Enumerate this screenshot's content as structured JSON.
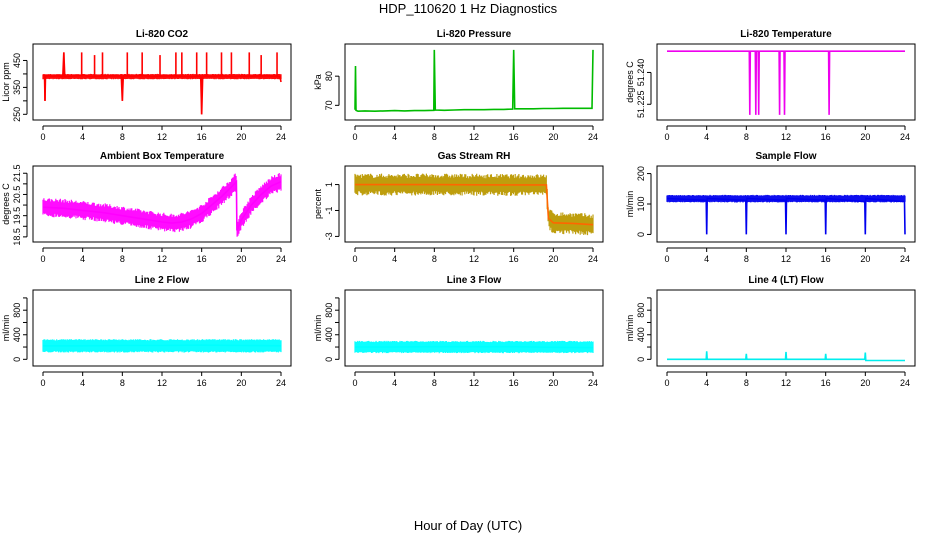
{
  "figure": {
    "title": "HDP_110620  1 Hz Diagnostics",
    "xlabel": "Hour of Day (UTC)"
  },
  "chart_data": [
    {
      "type": "line",
      "title": "Li-820 CO2",
      "ylabel": "Licor ppm",
      "color": "#ff0000",
      "xlim": [
        0,
        24
      ],
      "ylim": [
        240,
        500
      ],
      "xticks": [
        0,
        4,
        8,
        12,
        16,
        20,
        24
      ],
      "yticks": [
        250,
        300,
        350,
        400,
        450
      ],
      "ytick_labels": [
        "250",
        "",
        "350",
        "",
        "450"
      ],
      "series": [
        {
          "name": "CO2",
          "x": [
            0,
            0.15,
            0.2,
            0.25,
            0.5,
            1.0,
            1.5,
            2.0,
            2.1,
            2.2,
            3,
            4,
            5,
            6,
            7,
            7.9,
            8,
            8.1,
            9,
            10,
            11,
            12,
            13,
            14,
            15,
            15.9,
            16,
            16.1,
            17,
            18,
            19,
            20,
            21,
            22,
            23,
            23.9,
            24
          ],
          "y": [
            395,
            395,
            300,
            392,
            393,
            391,
            393,
            390,
            480,
            390,
            392,
            394,
            390,
            392,
            393,
            392,
            300,
            393,
            391,
            394,
            390,
            392,
            393,
            391,
            390,
            392,
            250,
            392,
            391,
            393,
            390,
            392,
            391,
            393,
            392,
            390,
            370
          ]
        }
      ],
      "band": {
        "low": 380,
        "high": 400
      },
      "spikes": [
        {
          "x": 0.2,
          "y": 300
        },
        {
          "x": 2.1,
          "y": 480
        },
        {
          "x": 3.9,
          "y": 480
        },
        {
          "x": 5.2,
          "y": 470
        },
        {
          "x": 6.0,
          "y": 480
        },
        {
          "x": 8.0,
          "y": 300
        },
        {
          "x": 8.5,
          "y": 480
        },
        {
          "x": 10.0,
          "y": 480
        },
        {
          "x": 11.8,
          "y": 470
        },
        {
          "x": 13.4,
          "y": 480
        },
        {
          "x": 14.0,
          "y": 480
        },
        {
          "x": 15.5,
          "y": 480
        },
        {
          "x": 16.0,
          "y": 250
        },
        {
          "x": 16.5,
          "y": 480
        },
        {
          "x": 18.0,
          "y": 480
        },
        {
          "x": 19.0,
          "y": 480
        },
        {
          "x": 20.8,
          "y": 480
        },
        {
          "x": 22.0,
          "y": 470
        },
        {
          "x": 23.6,
          "y": 480
        }
      ]
    },
    {
      "type": "line",
      "title": "Li-820 Pressure",
      "ylabel": "kPa",
      "color": "#00bb00",
      "xlim": [
        0,
        24
      ],
      "ylim": [
        66,
        90
      ],
      "xticks": [
        0,
        4,
        8,
        12,
        16,
        20,
        24
      ],
      "yticks": [
        70,
        80
      ],
      "ytick_labels": [
        "70",
        "80"
      ],
      "series": [
        {
          "name": "Pressure",
          "x": [
            0,
            0.05,
            0.1,
            0.3,
            1,
            2,
            3,
            4,
            5,
            6,
            7,
            7.95,
            8,
            8.1,
            9,
            10,
            11,
            12,
            13,
            14,
            15,
            15.9,
            16,
            16.1,
            17,
            18,
            19,
            20,
            21,
            22,
            23,
            23.9,
            24
          ],
          "y": [
            68.5,
            83.5,
            68.3,
            68.0,
            68.1,
            68.0,
            68.1,
            68.2,
            68.1,
            68.2,
            68.2,
            68.3,
            89,
            68.4,
            68.3,
            68.4,
            68.5,
            68.5,
            68.5,
            68.6,
            68.6,
            68.7,
            89,
            68.8,
            68.8,
            68.8,
            68.9,
            68.9,
            69.0,
            69.0,
            69.0,
            69.0,
            89
          ]
        }
      ]
    },
    {
      "type": "line",
      "title": "Li-820 Temperature",
      "ylabel": "degrees C",
      "color": "#ee00ee",
      "xlim": [
        0,
        24
      ],
      "ylim": [
        51.219,
        51.252
      ],
      "xticks": [
        0,
        4,
        8,
        12,
        16,
        20,
        24
      ],
      "yticks": [
        51.225,
        51.24
      ],
      "ytick_labels": [
        "51.225",
        "51.240"
      ],
      "series": [
        {
          "name": "Temperature",
          "x": [
            0,
            8.3,
            8.35,
            8.4,
            8.9,
            8.95,
            9.0,
            9.2,
            9.25,
            9.3,
            11.3,
            11.35,
            11.4,
            11.8,
            11.85,
            11.9,
            16.3,
            16.35,
            16.4,
            24
          ],
          "y": [
            51.25,
            51.25,
            51.22,
            51.25,
            51.25,
            51.22,
            51.25,
            51.25,
            51.22,
            51.25,
            51.25,
            51.22,
            51.25,
            51.25,
            51.22,
            51.25,
            51.25,
            51.22,
            51.25,
            51.25
          ]
        }
      ]
    },
    {
      "type": "line",
      "title": "Ambient Box Temperature",
      "ylabel": "degrees C",
      "color": "#ff00ff",
      "xlim": [
        0,
        24
      ],
      "ylim": [
        18.4,
        21.7
      ],
      "xticks": [
        0,
        4,
        8,
        12,
        16,
        20,
        24
      ],
      "yticks": [
        18.5,
        19,
        19.5,
        20,
        20.5,
        21,
        21.5
      ],
      "ytick_labels": [
        "18.5",
        "",
        "19.5",
        "",
        "20.5",
        "",
        "21.5"
      ],
      "series": [
        {
          "name": "Ambient",
          "x": [
            0,
            2,
            4,
            6,
            8,
            10,
            12,
            13,
            14,
            15,
            16,
            17,
            18,
            19,
            19.5,
            19.55,
            20,
            21,
            22,
            23,
            24
          ],
          "y": [
            19.9,
            19.85,
            19.75,
            19.65,
            19.5,
            19.35,
            19.2,
            19.15,
            19.2,
            19.35,
            19.6,
            20.0,
            20.4,
            20.85,
            21.1,
            18.8,
            19.3,
            20.0,
            20.5,
            20.9,
            21.1
          ]
        }
      ],
      "band": {
        "half_width": 0.45
      }
    },
    {
      "type": "line",
      "title": "Gas Stream RH",
      "ylabel": "percent",
      "color": "#ff6600",
      "xlim": [
        0,
        24
      ],
      "ylim": [
        -3.2,
        2.2
      ],
      "xticks": [
        0,
        4,
        8,
        12,
        16,
        20,
        24
      ],
      "yticks": [
        -3,
        -1,
        1
      ],
      "ytick_labels": [
        "-3",
        "-1",
        "1"
      ],
      "series": [
        {
          "name": "RH",
          "x": [
            0,
            4,
            8,
            12,
            16,
            19.3,
            19.5,
            20,
            22,
            24
          ],
          "y": [
            1.0,
            1.0,
            1.0,
            0.98,
            0.97,
            0.97,
            -1.6,
            -1.95,
            -2.0,
            -2.1
          ]
        }
      ],
      "band": {
        "half_width": 0.85,
        "edge_color": "#bb9900"
      }
    },
    {
      "type": "line",
      "title": "Sample Flow",
      "ylabel": "ml/min",
      "color": "#0000ee",
      "xlim": [
        0,
        24
      ],
      "ylim": [
        -15,
        215
      ],
      "xticks": [
        0,
        4,
        8,
        12,
        16,
        20,
        24
      ],
      "yticks": [
        0,
        100,
        200
      ],
      "ytick_labels": [
        "0",
        "100",
        "200"
      ],
      "series": [
        {
          "name": "Sample Flow",
          "x": [
            0,
            3.95,
            4.0,
            4.05,
            7.95,
            8.0,
            8.05,
            11.95,
            12.0,
            12.05,
            15.95,
            16.0,
            16.05,
            19.95,
            20.0,
            20.05,
            23.95,
            24.0
          ],
          "y": [
            118,
            112,
            0,
            118,
            112,
            0,
            118,
            112,
            0,
            118,
            112,
            0,
            118,
            108,
            0,
            118,
            108,
            0
          ]
        }
      ],
      "band": {
        "low": 105,
        "high": 130
      }
    },
    {
      "type": "line",
      "title": "Line 2 Flow",
      "ylabel": "ml/min",
      "color": "#00ffff",
      "xlim": [
        0,
        24
      ],
      "ylim": [
        -60,
        1080
      ],
      "xticks": [
        0,
        4,
        8,
        12,
        16,
        20,
        24
      ],
      "yticks": [
        0,
        200,
        400,
        600,
        800,
        1000
      ],
      "ytick_labels": [
        "0",
        "",
        "400",
        "",
        "800",
        ""
      ],
      "series": [
        {
          "name": "Line 2",
          "x": [
            0,
            4,
            8,
            12,
            16,
            20,
            24
          ],
          "y": [
            220,
            220,
            225,
            225,
            230,
            225,
            220
          ]
        }
      ],
      "band": {
        "low": 110,
        "high": 330
      }
    },
    {
      "type": "line",
      "title": "Line 3 Flow",
      "ylabel": "ml/min",
      "color": "#00ffff",
      "xlim": [
        0,
        24
      ],
      "ylim": [
        -60,
        1080
      ],
      "xticks": [
        0,
        4,
        8,
        12,
        16,
        20,
        24
      ],
      "yticks": [
        0,
        200,
        400,
        600,
        800,
        1000
      ],
      "ytick_labels": [
        "0",
        "",
        "400",
        "",
        "800",
        ""
      ],
      "series": [
        {
          "name": "Line 3",
          "x": [
            0,
            4,
            8,
            12,
            16,
            20,
            24
          ],
          "y": [
            200,
            200,
            205,
            205,
            205,
            195,
            190
          ]
        }
      ],
      "band": {
        "low": 100,
        "high": 300
      }
    },
    {
      "type": "line",
      "title": "Line 4 (LT) Flow",
      "ylabel": "ml/min",
      "color": "#00eeee",
      "xlim": [
        0,
        24
      ],
      "ylim": [
        -60,
        1080
      ],
      "xticks": [
        0,
        4,
        8,
        12,
        16,
        20,
        24
      ],
      "yticks": [
        0,
        200,
        400,
        600,
        800,
        1000
      ],
      "ytick_labels": [
        "0",
        "",
        "400",
        "",
        "800",
        ""
      ],
      "series": [
        {
          "name": "Line 4",
          "x": [
            0,
            3.95,
            4.0,
            4.05,
            7.95,
            8.0,
            8.05,
            11.95,
            12.0,
            12.05,
            15.95,
            16.0,
            16.05,
            19.95,
            20.0,
            20.05,
            24
          ],
          "y": [
            0,
            0,
            130,
            0,
            0,
            90,
            0,
            0,
            120,
            0,
            0,
            90,
            0,
            0,
            110,
            -20,
            -20
          ]
        }
      ]
    }
  ]
}
